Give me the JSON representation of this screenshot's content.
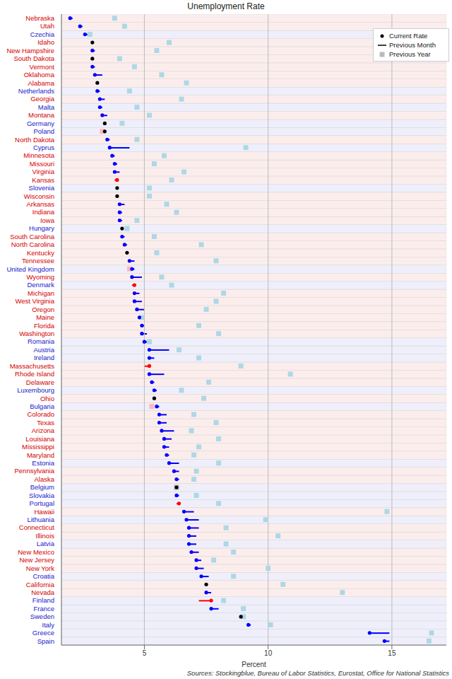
{
  "chart_data": {
    "type": "dot",
    "title": "Unemployment Rate",
    "x_label": "Percent",
    "source": "Sources: Stockingblue, Bureau of Labor Statistics, Eurostat, Office for National Statistics",
    "orientation": "horizontal",
    "grid": true,
    "legend": "top-right",
    "xlim": [
      1.65,
      17.2
    ],
    "xticks": [
      5,
      10,
      15
    ],
    "categories": [
      "Nebraska",
      "Utah",
      "Czechia",
      "Idaho",
      "New Hampshire",
      "South Dakota",
      "Vermont",
      "Oklahoma",
      "Alabama",
      "Netherlands",
      "Georgia",
      "Malta",
      "Montana",
      "Germany",
      "Poland",
      "North Dakota",
      "Cyprus",
      "Minnesota",
      "Missouri",
      "Virginia",
      "Kansas",
      "Slovenia",
      "Wisconsin",
      "Arkansas",
      "Indiana",
      "Iowa",
      "Hungary",
      "South Carolina",
      "North Carolina",
      "Kentucky",
      "Tennessee",
      "United Kingdom",
      "Wyoming",
      "Denmark",
      "Michigan",
      "West Virginia",
      "Oregon",
      "Maine",
      "Florida",
      "Washington",
      "Romania",
      "Austria",
      "Ireland",
      "Massachusetts",
      "Rhode Island",
      "Delaware",
      "Luxembourg",
      "Ohio",
      "Bulgaria",
      "Colorado",
      "Texas",
      "Arizona",
      "Louisiana",
      "Mississippi",
      "Maryland",
      "Estonia",
      "Pennsylvania",
      "Alaska",
      "Belgium",
      "Slovakia",
      "Portugal",
      "Hawaii",
      "Lithuania",
      "Connecticut",
      "Illinois",
      "Latvia",
      "New Mexico",
      "New Jersey",
      "New York",
      "Croatia",
      "California",
      "Nevada",
      "Finland",
      "France",
      "Sweden",
      "Italy",
      "Greece",
      "Spain"
    ],
    "category_colors": [
      "#d40000",
      "#d40000",
      "#1a1acc",
      "#d40000",
      "#d40000",
      "#d40000",
      "#d40000",
      "#d40000",
      "#d40000",
      "#1a1acc",
      "#d40000",
      "#1a1acc",
      "#d40000",
      "#1a1acc",
      "#1a1acc",
      "#d40000",
      "#1a1acc",
      "#d40000",
      "#d40000",
      "#d40000",
      "#d40000",
      "#1a1acc",
      "#d40000",
      "#d40000",
      "#d40000",
      "#d40000",
      "#1a1acc",
      "#d40000",
      "#d40000",
      "#d40000",
      "#d40000",
      "#1a1acc",
      "#d40000",
      "#1a1acc",
      "#d40000",
      "#d40000",
      "#d40000",
      "#d40000",
      "#d40000",
      "#d40000",
      "#1a1acc",
      "#1a1acc",
      "#1a1acc",
      "#d40000",
      "#d40000",
      "#d40000",
      "#1a1acc",
      "#d40000",
      "#1a1acc",
      "#d40000",
      "#d40000",
      "#d40000",
      "#d40000",
      "#d40000",
      "#d40000",
      "#1a1acc",
      "#d40000",
      "#d40000",
      "#1a1acc",
      "#1a1acc",
      "#1a1acc",
      "#d40000",
      "#1a1acc",
      "#d40000",
      "#d40000",
      "#1a1acc",
      "#d40000",
      "#d40000",
      "#d40000",
      "#1a1acc",
      "#d40000",
      "#d40000",
      "#1a1acc",
      "#1a1acc",
      "#1a1acc",
      "#1a1acc",
      "#1a1acc",
      "#1a1acc"
    ],
    "series": [
      {
        "name": "Current Rate",
        "marker": "circle",
        "values": [
          2.0,
          2.4,
          2.6,
          2.9,
          2.9,
          2.9,
          2.9,
          3.0,
          3.1,
          3.1,
          3.2,
          3.2,
          3.3,
          3.4,
          3.4,
          3.5,
          3.6,
          3.7,
          3.8,
          3.8,
          3.9,
          3.9,
          3.9,
          4.0,
          4.0,
          4.0,
          4.1,
          4.1,
          4.2,
          4.3,
          4.4,
          4.5,
          4.5,
          4.6,
          4.6,
          4.6,
          4.7,
          4.8,
          4.9,
          4.9,
          5.0,
          5.2,
          5.2,
          5.2,
          5.2,
          5.3,
          5.4,
          5.4,
          5.5,
          5.6,
          5.6,
          5.7,
          5.8,
          5.8,
          5.9,
          6.0,
          6.2,
          6.3,
          6.3,
          6.3,
          6.4,
          6.6,
          6.7,
          6.8,
          6.8,
          6.8,
          6.9,
          7.1,
          7.1,
          7.3,
          7.5,
          7.5,
          7.7,
          7.7,
          8.9,
          9.2,
          14.1,
          14.7
        ],
        "colors": [
          "#0000ff",
          "#0000ff",
          "#0000ff",
          "#000000",
          "#0000ff",
          "#000000",
          "#0000ff",
          "#0000ff",
          "#000000",
          "#0000ff",
          "#0000ff",
          "#0000ff",
          "#0000ff",
          "#000000",
          "#000000",
          "#0000ff",
          "#0000ff",
          "#0000ff",
          "#0000ff",
          "#0000ff",
          "#ff0000",
          "#000000",
          "#000000",
          "#0000ff",
          "#0000ff",
          "#0000ff",
          "#000000",
          "#0000ff",
          "#0000ff",
          "#000000",
          "#0000ff",
          "#0000ff",
          "#0000ff",
          "#ff0000",
          "#0000ff",
          "#0000ff",
          "#0000ff",
          "#0000ff",
          "#0000ff",
          "#0000ff",
          "#0000ff",
          "#0000ff",
          "#0000ff",
          "#ff0000",
          "#0000ff",
          "#0000ff",
          "#0000ff",
          "#000000",
          "#0000ff",
          "#0000ff",
          "#0000ff",
          "#0000ff",
          "#0000ff",
          "#0000ff",
          "#0000ff",
          "#0000ff",
          "#0000ff",
          "#0000ff",
          "#000000",
          "#0000ff",
          "#ff0000",
          "#0000ff",
          "#0000ff",
          "#0000ff",
          "#0000ff",
          "#0000ff",
          "#0000ff",
          "#0000ff",
          "#0000ff",
          "#0000ff",
          "#000000",
          "#0000ff",
          "#ff0000",
          "#0000ff",
          "#000000",
          "#0000ff",
          "#0000ff",
          "#0000ff"
        ]
      },
      {
        "name": "Previous Month",
        "line_style": "solid",
        "values": [
          2.1,
          2.5,
          2.8,
          2.9,
          3.0,
          2.9,
          3.0,
          3.3,
          3.1,
          3.2,
          3.4,
          3.3,
          3.5,
          3.4,
          3.4,
          3.6,
          4.4,
          3.8,
          3.9,
          4.0,
          3.8,
          3.9,
          3.9,
          4.2,
          4.1,
          4.1,
          4.1,
          4.2,
          4.3,
          4.3,
          4.6,
          4.6,
          4.9,
          4.5,
          4.8,
          4.9,
          5.0,
          4.9,
          5.0,
          5.1,
          5.2,
          6.0,
          5.4,
          5.0,
          5.8,
          5.4,
          5.5,
          5.4,
          5.6,
          5.9,
          5.9,
          6.2,
          6.1,
          6.0,
          6.0,
          6.4,
          6.4,
          6.4,
          6.3,
          6.4,
          6.3,
          7.0,
          7.2,
          7.2,
          7.1,
          7.1,
          7.2,
          7.3,
          7.4,
          7.6,
          7.5,
          7.7,
          7.2,
          8.0,
          8.9,
          9.3,
          14.9,
          14.9
        ],
        "colors": [
          "#0000ff",
          "#0000ff",
          "#0000ff",
          "#000000",
          "#0000ff",
          "#000000",
          "#0000ff",
          "#0000ff",
          "#000000",
          "#0000ff",
          "#0000ff",
          "#0000ff",
          "#0000ff",
          "#000000",
          "#000000",
          "#0000ff",
          "#0000ff",
          "#0000ff",
          "#0000ff",
          "#0000ff",
          "#ff0000",
          "#000000",
          "#000000",
          "#0000ff",
          "#0000ff",
          "#0000ff",
          "#000000",
          "#0000ff",
          "#0000ff",
          "#000000",
          "#0000ff",
          "#0000ff",
          "#0000ff",
          "#ff0000",
          "#0000ff",
          "#0000ff",
          "#0000ff",
          "#0000ff",
          "#0000ff",
          "#0000ff",
          "#0000ff",
          "#0000ff",
          "#0000ff",
          "#ff0000",
          "#0000ff",
          "#0000ff",
          "#0000ff",
          "#000000",
          "#0000ff",
          "#0000ff",
          "#0000ff",
          "#0000ff",
          "#0000ff",
          "#0000ff",
          "#0000ff",
          "#0000ff",
          "#0000ff",
          "#0000ff",
          "#000000",
          "#0000ff",
          "#ff0000",
          "#0000ff",
          "#0000ff",
          "#0000ff",
          "#0000ff",
          "#0000ff",
          "#0000ff",
          "#0000ff",
          "#0000ff",
          "#0000ff",
          "#000000",
          "#0000ff",
          "#ff0000",
          "#0000ff",
          "#000000",
          "#0000ff",
          "#0000ff",
          "#0000ff"
        ]
      },
      {
        "name": "Previous Year",
        "marker": "square",
        "values": [
          3.8,
          4.2,
          2.8,
          6.0,
          5.5,
          4.0,
          4.6,
          5.7,
          6.7,
          4.4,
          6.5,
          4.7,
          5.2,
          4.1,
          3.3,
          4.7,
          9.1,
          5.8,
          5.4,
          6.6,
          6.1,
          5.2,
          5.2,
          5.9,
          6.3,
          4.7,
          4.3,
          5.4,
          7.3,
          5.5,
          7.9,
          4.4,
          5.7,
          6.1,
          8.2,
          7.9,
          7.5,
          4.9,
          7.2,
          8.0,
          5.2,
          6.4,
          7.2,
          8.9,
          10.9,
          7.6,
          6.5,
          7.4,
          5.3,
          7.0,
          7.9,
          6.9,
          8.0,
          7.2,
          7.0,
          8.0,
          7.1,
          7.0,
          6.3,
          7.1,
          8.0,
          14.8,
          9.9,
          8.3,
          10.4,
          8.3,
          8.6,
          7.8,
          10.0,
          8.6,
          10.6,
          13.0,
          8.2,
          9.0,
          9.0,
          10.1,
          16.6,
          16.5
        ],
        "colors": [
          "#add8e6",
          "#add8e6",
          "#add8e6",
          "#add8e6",
          "#add8e6",
          "#add8e6",
          "#add8e6",
          "#add8e6",
          "#add8e6",
          "#add8e6",
          "#add8e6",
          "#add8e6",
          "#add8e6",
          "#add8e6",
          "#ffb6c1",
          "#add8e6",
          "#add8e6",
          "#add8e6",
          "#add8e6",
          "#add8e6",
          "#add8e6",
          "#add8e6",
          "#add8e6",
          "#add8e6",
          "#add8e6",
          "#add8e6",
          "#add8e6",
          "#add8e6",
          "#add8e6",
          "#add8e6",
          "#add8e6",
          "#ffb6c1",
          "#add8e6",
          "#add8e6",
          "#add8e6",
          "#add8e6",
          "#add8e6",
          "#add8e6",
          "#add8e6",
          "#add8e6",
          "#add8e6",
          "#add8e6",
          "#add8e6",
          "#add8e6",
          "#add8e6",
          "#add8e6",
          "#add8e6",
          "#add8e6",
          "#ffb6c1",
          "#add8e6",
          "#add8e6",
          "#add8e6",
          "#add8e6",
          "#add8e6",
          "#add8e6",
          "#add8e6",
          "#add8e6",
          "#add8e6",
          "#b0b0b0",
          "#add8e6",
          "#add8e6",
          "#add8e6",
          "#add8e6",
          "#add8e6",
          "#add8e6",
          "#add8e6",
          "#add8e6",
          "#add8e6",
          "#add8e6",
          "#add8e6",
          "#add8e6",
          "#add8e6",
          "#add8e6",
          "#add8e6",
          "#add8e6",
          "#add8e6",
          "#add8e6",
          "#add8e6"
        ]
      }
    ]
  }
}
